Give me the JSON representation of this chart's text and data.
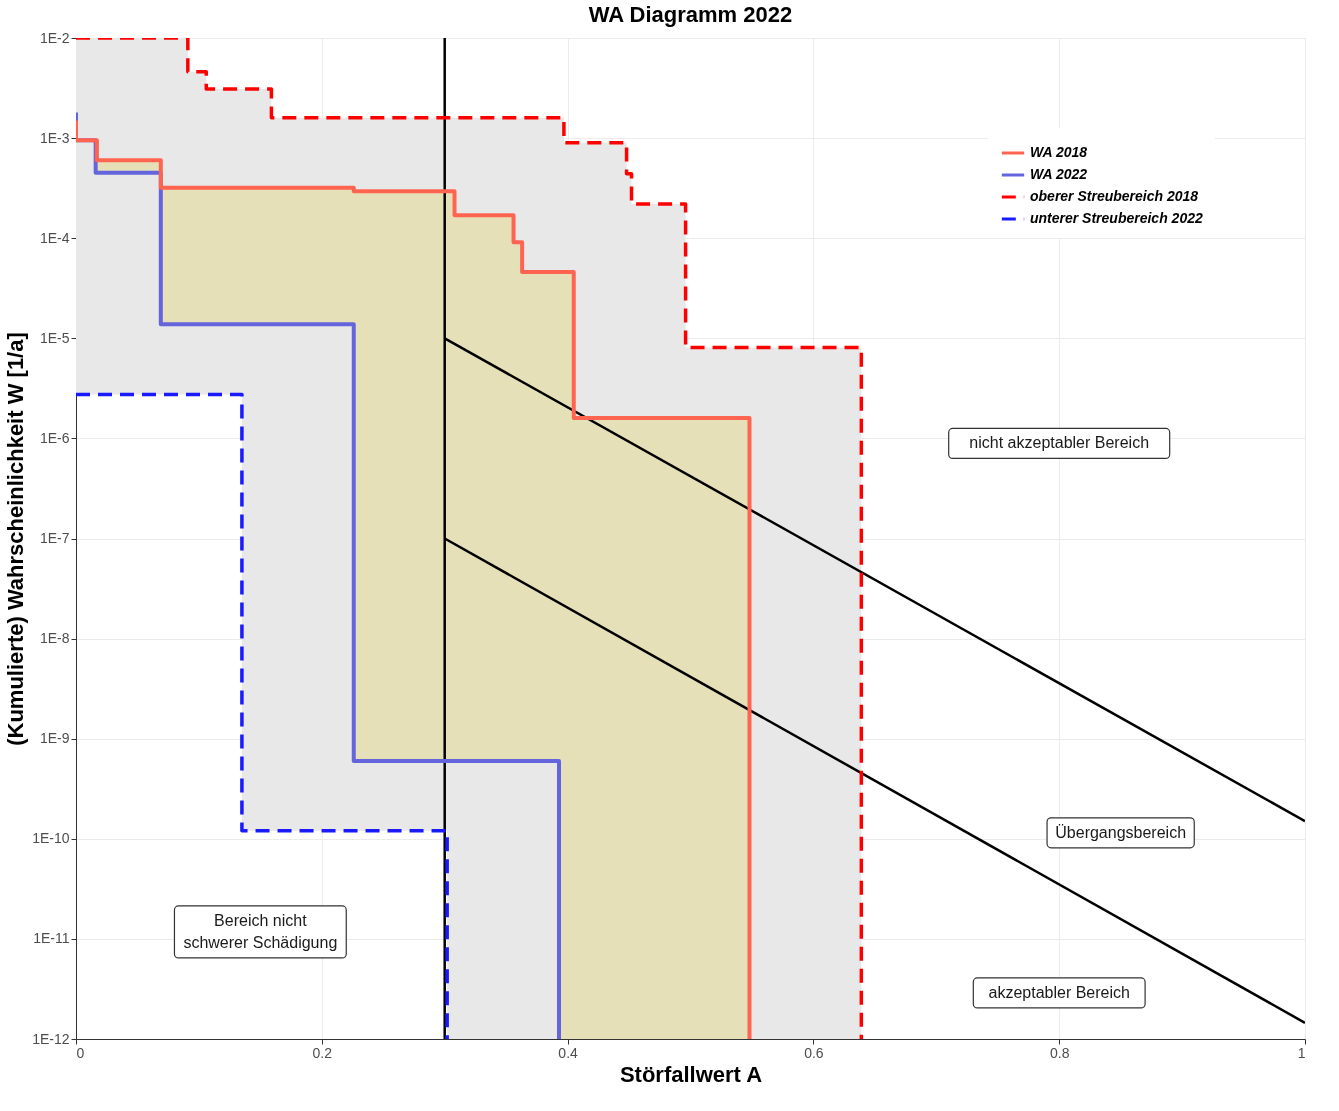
{
  "chart_data": {
    "type": "step",
    "title": "WA Diagramm 2022",
    "xlabel": "Störfallwert A",
    "ylabel": "(Kumulierte) Wahrscheinlichkeit W [1/a]",
    "log": "y",
    "grid": true,
    "legend": "top right",
    "xlim": [
      0,
      1
    ],
    "xticks": [
      0,
      0.2,
      0.4,
      0.6,
      0.8,
      1
    ],
    "ylim": [
      1e-12,
      0.01
    ],
    "yticks": [
      {
        "value": 1e-12,
        "label": "1E-12"
      },
      {
        "value": 1e-11,
        "label": "1E-11"
      },
      {
        "value": 1e-10,
        "label": "1E-10"
      },
      {
        "value": 1e-09,
        "label": "1E-9"
      },
      {
        "value": 1e-08,
        "label": "1E-8"
      },
      {
        "value": 1e-07,
        "label": "1E-7"
      },
      {
        "value": 1e-06,
        "label": "1E-6"
      },
      {
        "value": 1e-05,
        "label": "1E-5"
      },
      {
        "value": 0.0001,
        "label": "1E-4"
      },
      {
        "value": 0.001,
        "label": "1E-3"
      },
      {
        "value": 0.01,
        "label": "1E-2"
      }
    ],
    "series": [
      {
        "name": "WA 2018",
        "color": "#ff6450",
        "line_style": "solid",
        "x": [
          0,
          0,
          0.017,
          0.069,
          0.226,
          0.308,
          0.356,
          0.363,
          0.393,
          0.405,
          0.548
        ],
        "values": [
          0.0015,
          0.00095,
          0.0006,
          0.00032,
          0.000295,
          0.00017,
          9.1e-05,
          4.6e-05,
          4.6e-05,
          1.6e-06,
          1e-12
        ],
        "upper": [
          null,
          null,
          0.0006,
          0.00032,
          0.000295,
          0.00017,
          9.1e-05,
          4.6e-05,
          4.6e-05,
          1.6e-06,
          1.6e-06
        ],
        "lower": [
          null,
          null,
          0.00045,
          1.38e-05,
          6e-10,
          6e-10,
          6e-10,
          6e-10,
          1e-12,
          1e-12,
          1e-12
        ]
      },
      {
        "name": "WA 2022",
        "color": "#6464dc",
        "line_style": "solid",
        "x": [
          0,
          0,
          0.016,
          0.069,
          0.226,
          0.393
        ],
        "values": [
          0.0018,
          0.00095,
          0.00045,
          1.38e-05,
          6e-10,
          1e-12
        ]
      },
      {
        "name": "oberer Streubereich 2018",
        "color": "#ff0000",
        "line_style": "dashed",
        "x": [
          0,
          0.091,
          0.106,
          0.135,
          0.159,
          0.302,
          0.397,
          0.448,
          0.452,
          0.496,
          0.639
        ],
        "values": [
          0.01,
          0.0046,
          0.0031,
          0.0031,
          0.0016,
          0.0016,
          0.0009,
          0.00044,
          0.00022,
          8.1e-06,
          1e-12
        ],
        "upper": [
          0.01,
          0.0046,
          0.0031,
          0.0031,
          0.0016,
          0.0016,
          0.0009,
          0.00044,
          0.00022,
          8.1e-06,
          8.1e-06
        ],
        "lower": [
          2.75e-06,
          2.75e-06,
          2.75e-06,
          1.2e-10,
          1.2e-10,
          1e-12,
          1e-12,
          1e-12,
          1e-12,
          1e-12,
          1e-12
        ]
      },
      {
        "name": "unterer Streubereich 2022",
        "color": "#1a1aff",
        "line_style": "dashed",
        "x": [
          0,
          0.135,
          0.302
        ],
        "values": [
          2.75e-06,
          1.2e-10,
          1e-12
        ]
      },
      {
        "type": "line",
        "color": "#000000",
        "x": [
          0.3,
          1
        ],
        "values": [
          1e-05,
          1.5e-10
        ]
      },
      {
        "type": "line",
        "color": "#000000",
        "x": [
          0.3,
          1
        ],
        "values": [
          1e-07,
          1.45e-12
        ]
      }
    ],
    "ref_lines": [
      {
        "axis": "x",
        "value": 0.3,
        "color": "#000000"
      }
    ],
    "annotations": [
      "nicht akzeptabler Bereich",
      "Übergangsbereich",
      "akzeptabler Bereich",
      "Bereich nicht\nschwerer Schädigung"
    ]
  }
}
